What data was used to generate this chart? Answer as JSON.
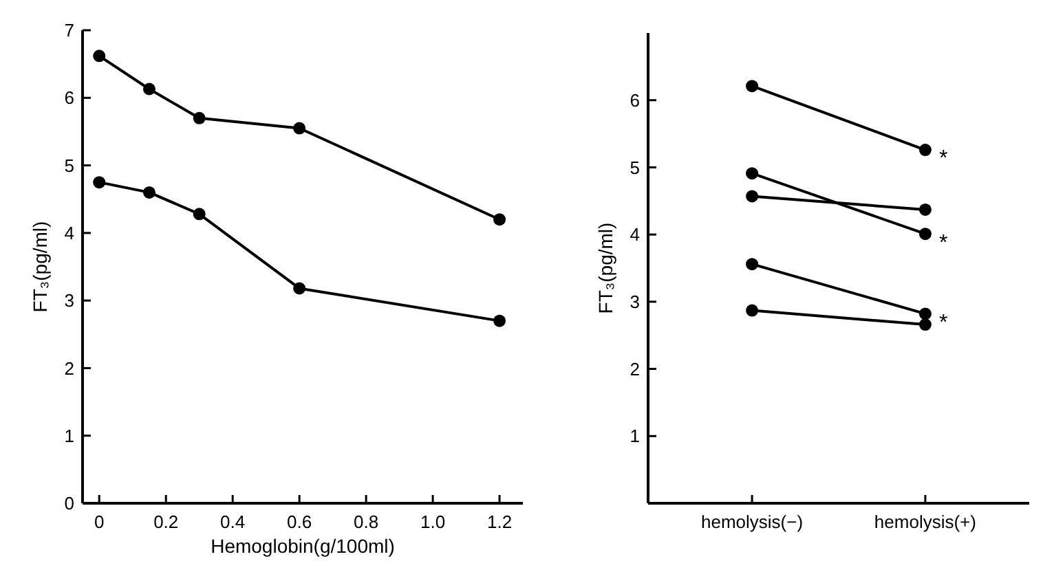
{
  "chart_data": [
    {
      "type": "line",
      "xlabel": "Hemoglobin(g/100ml)",
      "ylabel": "FT₃(pg/ml)",
      "x": [
        0,
        0.15,
        0.3,
        0.6,
        1.2
      ],
      "xlim": [
        -0.05,
        1.27
      ],
      "xticks": [
        0,
        0.2,
        0.4,
        0.6,
        0.8,
        {
          "value": 1,
          "label": "1.0"
        },
        1.2
      ],
      "ylim": [
        0,
        7
      ],
      "yticks": [
        0,
        1,
        2,
        3,
        4,
        5,
        6,
        7
      ],
      "marker": "circle",
      "grid": false,
      "series": [
        {
          "color": "#000000",
          "values": [
            6.62,
            6.13,
            5.7,
            5.55,
            4.2
          ]
        },
        {
          "color": "#000000",
          "values": [
            4.75,
            4.6,
            4.28,
            3.18,
            2.7
          ]
        }
      ]
    },
    {
      "type": "line",
      "ylabel": "FT₃(pg/ml)",
      "categories": [
        "hemolysis(−)",
        "hemolysis(+)"
      ],
      "ylim": [
        0,
        7
      ],
      "yticks": [
        1,
        2,
        3,
        4,
        5,
        6
      ],
      "marker": "circle",
      "grid": false,
      "series": [
        {
          "color": "#000000",
          "values": [
            6.21,
            5.26
          ]
        },
        {
          "color": "#000000",
          "values": [
            4.91,
            4.01
          ]
        },
        {
          "color": "#000000",
          "values": [
            4.57,
            4.37
          ]
        },
        {
          "color": "#000000",
          "values": [
            3.56,
            2.82
          ]
        },
        {
          "color": "#000000",
          "values": [
            2.87,
            2.66
          ]
        }
      ],
      "annotations": [
        {
          "text": "*",
          "x": "hemolysis(+)",
          "y": 5.26
        },
        {
          "text": "*",
          "x": "hemolysis(+)",
          "y": 4.01
        },
        {
          "text": "*",
          "x": "hemolysis(+)",
          "y": 2.82
        }
      ]
    }
  ]
}
